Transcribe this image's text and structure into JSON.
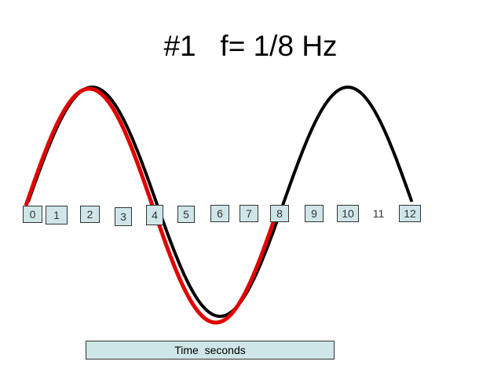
{
  "title": "#1   f= 1/8 Hz",
  "ticks": [
    "0",
    "1",
    "2",
    "3",
    "4",
    "5",
    "6",
    "7",
    "8",
    "9",
    "10",
    "11",
    "12"
  ],
  "axis_label": "Time  seconds",
  "colors": {
    "black_wave": "#000000",
    "red_wave": "#e00000",
    "box_fill": "#cfe6e8"
  },
  "chart_data": {
    "type": "line",
    "xlabel": "Time  seconds",
    "x_ticks": [
      0,
      1,
      2,
      3,
      4,
      5,
      6,
      7,
      8,
      9,
      10,
      11,
      12
    ],
    "series": [
      {
        "color": "#000000",
        "period": 8,
        "x_range": [
          0,
          12
        ]
      },
      {
        "color": "#e00000",
        "period": 8,
        "x_range": [
          0,
          8
        ]
      }
    ]
  }
}
